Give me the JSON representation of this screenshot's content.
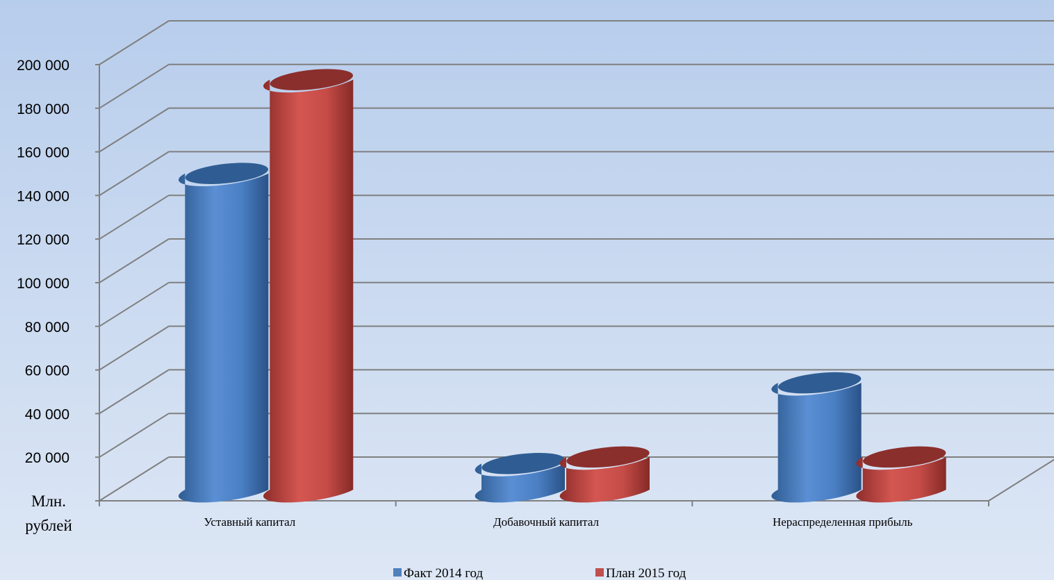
{
  "chart_data": {
    "type": "bar",
    "categories": [
      "Уставный капитал",
      "Добавочный капитал",
      "Нераспределенная прибыль"
    ],
    "series": [
      {
        "name": "Факт 2014 год",
        "values": [
          145000,
          12000,
          49000
        ],
        "color": "#4f81bd"
      },
      {
        "name": "План 2015 год",
        "values": [
          188000,
          15000,
          15000
        ],
        "color": "#c0504d"
      }
    ],
    "ylim": [
      0,
      200000
    ],
    "y_ticks": [
      0,
      20000,
      40000,
      60000,
      80000,
      100000,
      120000,
      140000,
      160000,
      180000,
      200000
    ],
    "y_tick_labels": [
      "",
      "20 000",
      "40 000",
      "60 000",
      "80 000",
      "100 000",
      "120 000",
      "140 000",
      "160 000",
      "180 000",
      "200 000"
    ],
    "ylabel_line1": "Млн.",
    "ylabel_line2": "рублей",
    "bar_shape": "cylinder-3d",
    "grid": true,
    "legend_position": "bottom"
  }
}
